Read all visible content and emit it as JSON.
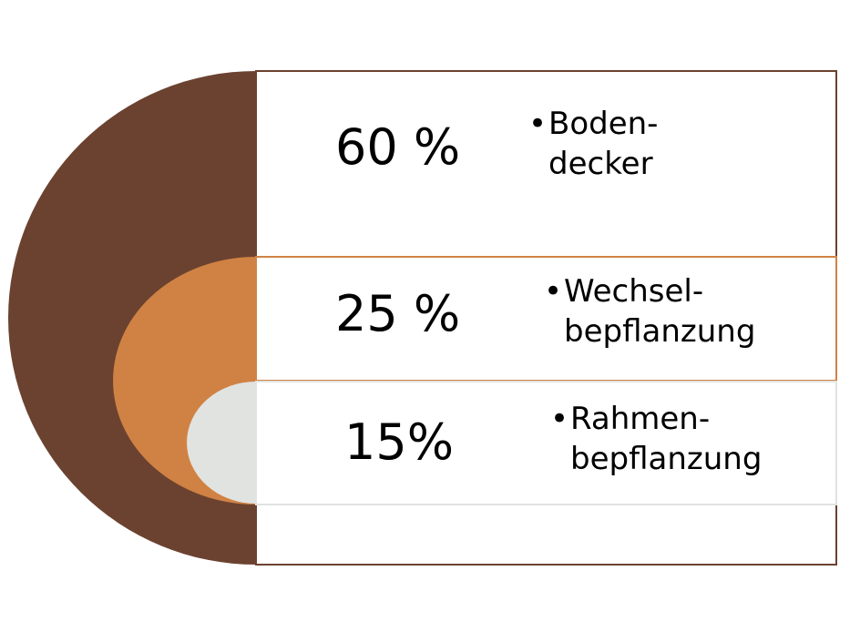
{
  "colors": {
    "level1": "#6b4230",
    "level2": "#d08244",
    "level3": "#e1e3e1",
    "frame": "#6b4230",
    "text": "#000000"
  },
  "levels": [
    {
      "percent": "60 %",
      "label_lines": [
        "Boden-",
        "decker"
      ]
    },
    {
      "percent": "25 %",
      "label_lines": [
        "Wechsel-",
        "bepflanzung"
      ]
    },
    {
      "percent": "15%",
      "label_lines": [
        "Rahmen-",
        "bepflanzung"
      ]
    }
  ]
}
